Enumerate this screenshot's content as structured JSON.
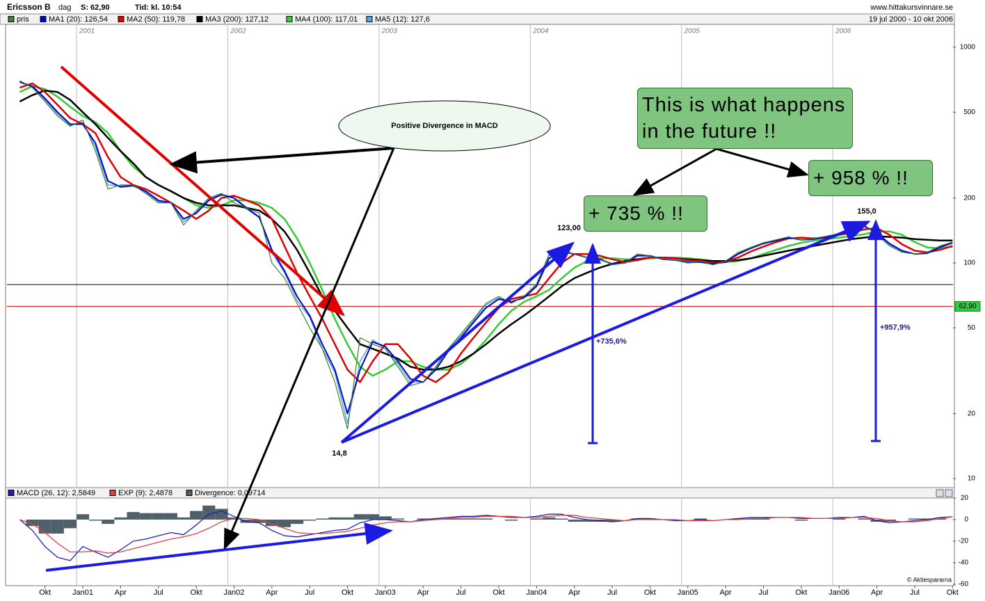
{
  "header": {
    "name": "Ericsson B",
    "interval": "dag",
    "last": "S: 62,90",
    "time": "Tid: kl. 10:54",
    "site": "www.hittakursvinnare.se",
    "range": "19 jul 2000 - 10 okt 2006"
  },
  "annotations": {
    "divergence": "Positive Divergence in MACD",
    "future": "This is what happens in the future !!",
    "gain_735": "+ 735 % !!",
    "gain_958": "+ 958 % !!",
    "low": "14,8",
    "high_2004": "123,00",
    "high_2006": "155,0",
    "pct_735": "+735,6%",
    "pct_958": "+957,9%",
    "copyright": "© Aktiespararna"
  },
  "chart_data": [
    {
      "type": "line",
      "y_scale": "log",
      "grid": true,
      "years": [
        "2001",
        "2002",
        "2003",
        "2004",
        "2005",
        "2006"
      ],
      "categories": [
        null,
        null,
        "Okt",
        null,
        null,
        "Jan01",
        null,
        null,
        "Apr",
        null,
        null,
        "Jul",
        null,
        null,
        "Okt",
        null,
        null,
        "Jan02",
        null,
        null,
        "Apr",
        null,
        null,
        "Jul",
        null,
        null,
        "Okt",
        null,
        null,
        "Jan03",
        null,
        null,
        "Apr",
        null,
        null,
        "Jul",
        null,
        null,
        "Okt",
        null,
        null,
        "Jan04",
        null,
        null,
        "Apr",
        null,
        null,
        "Jul",
        null,
        null,
        "Okt",
        null,
        null,
        "Jan05",
        null,
        null,
        "Apr",
        null,
        null,
        "Jul",
        null,
        null,
        "Okt",
        null,
        null,
        "Jan06",
        null,
        null,
        "Apr",
        null,
        null,
        "Jul",
        null,
        null,
        "Okt"
      ],
      "ylim": [
        9.15,
        1268
      ],
      "yticks": [
        10,
        20,
        50,
        100,
        200,
        500,
        1000
      ],
      "reference_lines": [
        {
          "value": 79.4,
          "color": "#000000"
        },
        {
          "value": 62.9,
          "color": "#cc0000",
          "label": "62,90"
        }
      ],
      "series": [
        {
          "name": "pris",
          "color": "#3f7f2f",
          "width": 1.2,
          "values": [
            700,
            650,
            560,
            480,
            430,
            460,
            330,
            220,
            230,
            230,
            210,
            190,
            190,
            150,
            175,
            200,
            210,
            190,
            180,
            170,
            100,
            85,
            65,
            50,
            40,
            28,
            17,
            45,
            42,
            40,
            33,
            27,
            28,
            33,
            40,
            47,
            55,
            65,
            70,
            65,
            70,
            80,
            110,
            115,
            110,
            106,
            105,
            98,
            100,
            110,
            108,
            104,
            103,
            100,
            102,
            98,
            102,
            112,
            118,
            124,
            128,
            132,
            128,
            130,
            133,
            137,
            140,
            150,
            135,
            120,
            112,
            110,
            112,
            120,
            125
          ]
        },
        {
          "name": "MA1 (20): 126,54",
          "color": "#0000cc",
          "width": 2,
          "values": [
            690,
            660,
            580,
            500,
            440,
            440,
            360,
            240,
            225,
            228,
            215,
            195,
            190,
            160,
            170,
            195,
            207,
            200,
            180,
            163,
            115,
            92,
            70,
            57,
            42,
            32,
            20,
            32,
            43,
            41,
            35,
            29,
            28,
            32,
            39,
            45,
            53,
            62,
            68,
            66,
            69,
            78,
            105,
            113,
            110,
            106,
            104,
            99,
            100,
            108,
            108,
            104,
            103,
            101,
            101,
            99,
            101,
            110,
            117,
            123,
            127,
            131,
            128,
            129,
            132,
            136,
            139,
            148,
            138,
            123,
            114,
            110,
            111,
            118,
            124
          ]
        },
        {
          "name": "MA2 (50): 119,78",
          "color": "#e00000",
          "width": 2.5,
          "values": [
            650,
            680,
            620,
            540,
            470,
            440,
            400,
            310,
            250,
            230,
            220,
            205,
            190,
            175,
            160,
            175,
            200,
            205,
            195,
            185,
            160,
            120,
            90,
            70,
            55,
            42,
            32,
            28,
            35,
            42,
            42,
            36,
            30,
            28,
            31,
            38,
            45,
            53,
            62,
            68,
            70,
            72,
            85,
            100,
            110,
            110,
            108,
            104,
            101,
            103,
            106,
            106,
            105,
            103,
            102,
            100,
            101,
            106,
            113,
            119,
            125,
            130,
            131,
            130,
            131,
            135,
            138,
            143,
            145,
            135,
            122,
            114,
            112,
            115,
            120
          ]
        },
        {
          "name": "MA3 (200): 127,12",
          "color": "#000000",
          "width": 2.5,
          "values": [
            560,
            600,
            630,
            620,
            570,
            500,
            440,
            380,
            330,
            290,
            250,
            230,
            215,
            200,
            190,
            185,
            185,
            185,
            180,
            175,
            160,
            140,
            115,
            90,
            70,
            60,
            50,
            42,
            40,
            38,
            36,
            33,
            32,
            32,
            33,
            35,
            38,
            42,
            47,
            52,
            57,
            63,
            70,
            78,
            85,
            90,
            95,
            99,
            102,
            104,
            106,
            106,
            105,
            104,
            103,
            102,
            102,
            103,
            105,
            108,
            111,
            114,
            117,
            120,
            123,
            126,
            129,
            131,
            133,
            132,
            131,
            129,
            128,
            127,
            127
          ]
        },
        {
          "name": "MA4 (100): 117,01",
          "color": "#33cc33",
          "width": 2.5,
          "values": [
            620,
            660,
            640,
            590,
            530,
            480,
            450,
            400,
            330,
            280,
            250,
            230,
            215,
            200,
            185,
            180,
            185,
            195,
            195,
            190,
            180,
            160,
            130,
            100,
            75,
            55,
            42,
            33,
            30,
            32,
            35,
            35,
            33,
            32,
            32,
            34,
            38,
            44,
            52,
            60,
            66,
            70,
            75,
            85,
            95,
            102,
            105,
            105,
            104,
            104,
            105,
            106,
            106,
            105,
            104,
            102,
            101,
            102,
            105,
            110,
            115,
            120,
            124,
            127,
            129,
            131,
            133,
            136,
            140,
            140,
            135,
            125,
            118,
            117,
            119
          ]
        },
        {
          "name": "MA5 (12): 127,6",
          "color": "#55a5dd",
          "width": 1.5,
          "values": [
            695,
            655,
            570,
            490,
            435,
            450,
            345,
            230,
            228,
            230,
            212,
            192,
            190,
            155,
            172,
            198,
            209,
            200,
            178,
            162,
            112,
            90,
            67,
            56,
            40,
            31,
            18,
            35,
            44,
            40,
            34,
            28,
            28,
            33,
            40,
            46,
            54,
            64,
            69,
            65,
            70,
            79,
            108,
            114,
            110,
            106,
            105,
            98,
            100,
            109,
            108,
            104,
            103,
            100,
            101,
            98,
            102,
            111,
            118,
            124,
            128,
            132,
            128,
            130,
            133,
            137,
            140,
            150,
            136,
            121,
            113,
            110,
            111,
            119,
            125
          ]
        }
      ]
    },
    {
      "type": "line",
      "grid": true,
      "ylim": [
        -61.3,
        29
      ],
      "yticks": [
        20,
        0,
        -20,
        -40,
        -60
      ],
      "series": [
        {
          "name": "MACD (26, 12): 2,5849",
          "color": "#2020b0",
          "type": "line",
          "values": [
            0,
            -10,
            -25,
            -35,
            -38,
            -25,
            -30,
            -35,
            -28,
            -20,
            -18,
            -15,
            -12,
            -14,
            -5,
            5,
            8,
            3,
            -2,
            -3,
            -10,
            -15,
            -16,
            -14,
            -12,
            -10,
            -9,
            -3,
            0,
            0,
            -1,
            -2,
            0,
            1,
            2,
            3,
            3,
            4,
            3,
            2,
            2,
            3,
            5,
            5,
            2,
            0,
            -1,
            -2,
            -1,
            1,
            1,
            0,
            -1,
            -1,
            0,
            -1,
            0,
            1,
            2,
            2,
            2,
            2,
            1,
            1,
            1,
            2,
            2,
            3,
            -1,
            -3,
            -2,
            -1,
            0,
            2,
            2.6
          ]
        },
        {
          "name": "EXP (9): 2,4878",
          "color": "#e04040",
          "type": "line",
          "values": [
            0,
            -4,
            -12,
            -22,
            -30,
            -30,
            -29,
            -31,
            -30,
            -27,
            -24,
            -21,
            -18,
            -16,
            -13,
            -8,
            -2,
            1,
            1,
            0,
            -4,
            -8,
            -12,
            -13,
            -13,
            -12,
            -11,
            -8,
            -5,
            -3,
            -2,
            -2,
            -1,
            0,
            1,
            2,
            2,
            3,
            3,
            3,
            2,
            2,
            3,
            4,
            4,
            2,
            1,
            0,
            -1,
            0,
            0,
            0,
            0,
            -1,
            -1,
            -1,
            0,
            0,
            1,
            1,
            2,
            2,
            2,
            1,
            1,
            1,
            2,
            2,
            1,
            -1,
            -2,
            -2,
            -1,
            1,
            2.5
          ]
        },
        {
          "name": "Divergence: 0,09714",
          "color": "#50606a",
          "type": "bar",
          "values": [
            0,
            -6,
            -13,
            -13,
            -8,
            5,
            -1,
            -4,
            2,
            7,
            6,
            6,
            6,
            2,
            8,
            13,
            10,
            2,
            -3,
            -3,
            -6,
            -7,
            -4,
            -1,
            1,
            2,
            2,
            5,
            5,
            3,
            1,
            0,
            1,
            1,
            1,
            1,
            1,
            1,
            0,
            -1,
            0,
            1,
            2,
            1,
            -2,
            -2,
            -2,
            -2,
            0,
            1,
            1,
            0,
            -1,
            0,
            1,
            0,
            0,
            1,
            1,
            1,
            0,
            0,
            -1,
            0,
            0,
            1,
            0,
            1,
            -2,
            -2,
            0,
            1,
            1,
            1,
            0.1
          ]
        }
      ]
    }
  ]
}
